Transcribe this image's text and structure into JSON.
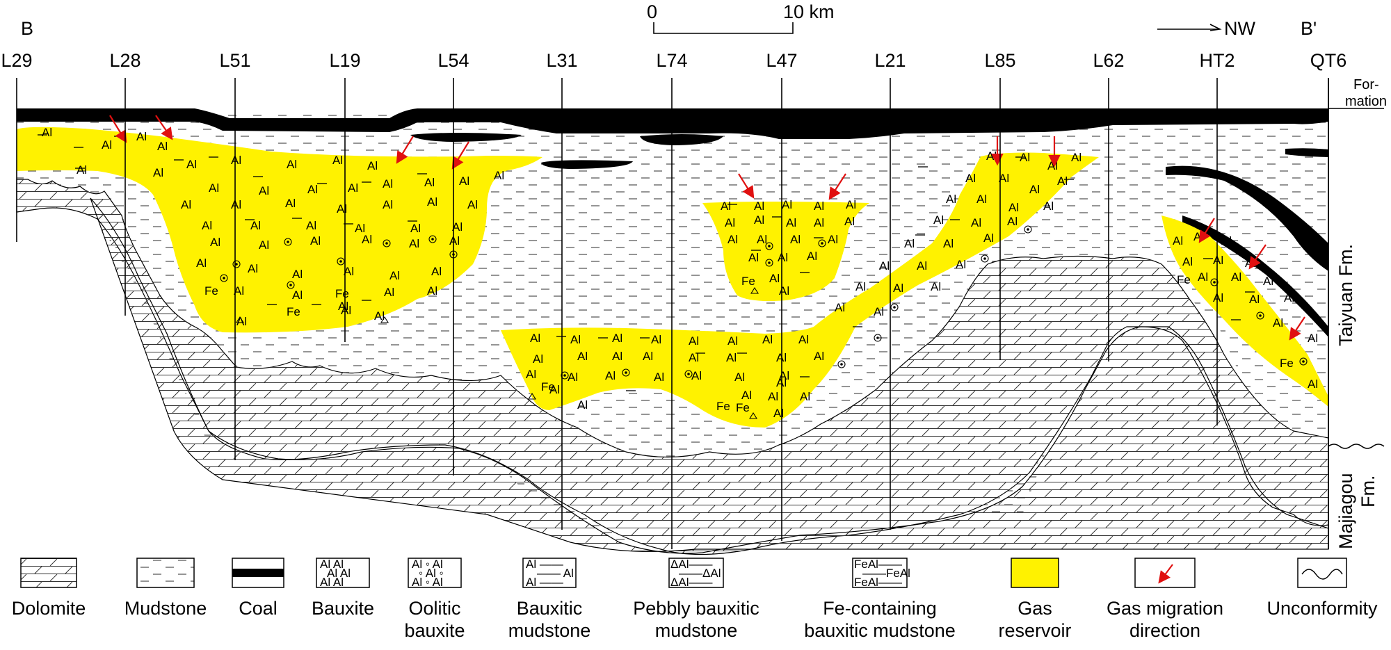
{
  "section": {
    "start_label": "B",
    "end_label": "B'",
    "direction_label": "NW",
    "scale": {
      "zero": "0",
      "end": "10 km"
    },
    "wells": [
      "L29",
      "L28",
      "L51",
      "L19",
      "L54",
      "L31",
      "L74",
      "L47",
      "L21",
      "L85",
      "L62",
      "HT2",
      "QT6"
    ]
  },
  "formations": {
    "header": [
      "For-",
      "mation"
    ],
    "taiyuan": "Taiyuan Fm.",
    "majiagou": [
      "Majiagou",
      "Fm."
    ]
  },
  "symbols": {
    "al": "Al",
    "fe": "Fe"
  },
  "legend": [
    {
      "name": "dolomite",
      "label": [
        "Dolomite"
      ]
    },
    {
      "name": "mudstone",
      "label": [
        "Mudstone"
      ]
    },
    {
      "name": "coal",
      "label": [
        "Coal"
      ]
    },
    {
      "name": "bauxite",
      "label": [
        "Bauxite"
      ]
    },
    {
      "name": "oolitic-bauxite",
      "label": [
        "Oolitic",
        "bauxite"
      ]
    },
    {
      "name": "bauxitic-mudstone",
      "label": [
        "Bauxitic",
        "mudstone"
      ]
    },
    {
      "name": "pebbly-bauxitic-mudstone",
      "label": [
        "Pebbly bauxitic",
        "mudstone"
      ]
    },
    {
      "name": "fe-bauxitic-mudstone",
      "label": [
        "Fe-containing",
        "bauxitic mudstone"
      ]
    },
    {
      "name": "gas-reservoir",
      "label": [
        "Gas",
        "reservoir"
      ]
    },
    {
      "name": "gas-migration",
      "label": [
        "Gas migration",
        "direction"
      ]
    },
    {
      "name": "unconformity",
      "label": [
        "Unconformity"
      ]
    }
  ],
  "legend_swatch_text": {
    "bauxite": [
      "Al  Al",
      "Al   Al",
      "Al   Al"
    ],
    "oolitic": [
      "Al ◦ Al",
      "◦ Al ◦",
      "Al ◦ Al"
    ],
    "bauxitic_mudstone": [
      "Al ——",
      "—— Al",
      "Al ——"
    ],
    "pebbly": [
      "ΔAl——",
      "——ΔAl",
      "ΔAl——"
    ],
    "fe": [
      "FeAl——",
      "——FeAl",
      "FeAl——"
    ]
  },
  "colors": {
    "gas_reservoir": "#fff200",
    "arrow": "#e01010",
    "coal": "#000000"
  }
}
